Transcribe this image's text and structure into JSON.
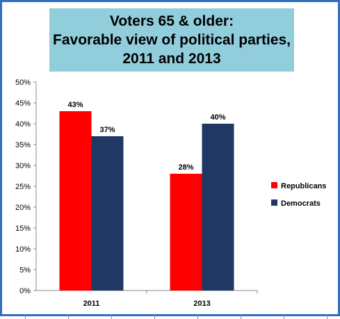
{
  "chart_data": {
    "type": "bar",
    "title_lines": [
      "Voters 65 & older:",
      "Favorable view of political parties,",
      "2011 and 2013"
    ],
    "categories": [
      "2011",
      "2013"
    ],
    "series": [
      {
        "name": "Republicans",
        "color": "#ff0000",
        "values": [
          43,
          28
        ],
        "labels": [
          "43%",
          "28%"
        ]
      },
      {
        "name": "Democrats",
        "color": "#1f3864",
        "values": [
          37,
          40
        ],
        "labels": [
          "37%",
          "40%"
        ]
      }
    ],
    "ylim": [
      0,
      50
    ],
    "yticks": [
      "0%",
      "5%",
      "10%",
      "15%",
      "20%",
      "25%",
      "30%",
      "35%",
      "40%",
      "45%",
      "50%"
    ],
    "grid": false,
    "legend_position": "right"
  }
}
